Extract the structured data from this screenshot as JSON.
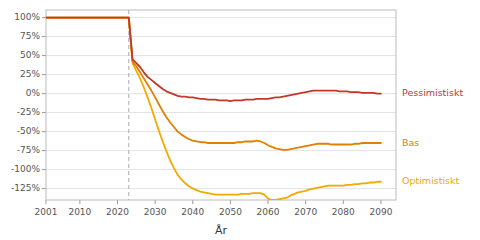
{
  "chart_data": {
    "type": "line",
    "xlabel": "År",
    "x": [
      2001,
      2002,
      2003,
      2004,
      2005,
      2006,
      2007,
      2008,
      2009,
      2010,
      2011,
      2012,
      2013,
      2014,
      2015,
      2016,
      2017,
      2018,
      2019,
      2020,
      2021,
      2022,
      2023,
      2024,
      2025,
      2026,
      2027,
      2028,
      2029,
      2030,
      2031,
      2032,
      2033,
      2034,
      2035,
      2036,
      2037,
      2038,
      2039,
      2040,
      2041,
      2042,
      2043,
      2044,
      2045,
      2046,
      2047,
      2048,
      2049,
      2050,
      2051,
      2052,
      2053,
      2054,
      2055,
      2056,
      2057,
      2058,
      2059,
      2060,
      2061,
      2062,
      2063,
      2064,
      2065,
      2066,
      2067,
      2068,
      2069,
      2070,
      2071,
      2072,
      2073,
      2074,
      2075,
      2076,
      2077,
      2078,
      2079,
      2080,
      2081,
      2082,
      2083,
      2084,
      2085,
      2086,
      2087,
      2088,
      2089,
      2090
    ],
    "series": [
      {
        "name": "Optimistiskt",
        "color": "#f5a800",
        "values": [
          1.0,
          1.0,
          1.0,
          1.0,
          1.0,
          1.0,
          1.0,
          1.0,
          1.0,
          1.0,
          1.0,
          1.0,
          1.0,
          1.0,
          1.0,
          1.0,
          1.0,
          1.0,
          1.0,
          1.0,
          1.0,
          1.0,
          1.0,
          0.4,
          0.3,
          0.2,
          0.08,
          -0.05,
          -0.19,
          -0.34,
          -0.49,
          -0.63,
          -0.76,
          -0.88,
          -0.98,
          -1.07,
          -1.13,
          -1.18,
          -1.22,
          -1.25,
          -1.27,
          -1.29,
          -1.3,
          -1.31,
          -1.32,
          -1.33,
          -1.33,
          -1.33,
          -1.33,
          -1.33,
          -1.33,
          -1.33,
          -1.32,
          -1.32,
          -1.32,
          -1.31,
          -1.31,
          -1.31,
          -1.33,
          -1.38,
          -1.4,
          -1.4,
          -1.39,
          -1.38,
          -1.37,
          -1.34,
          -1.32,
          -1.3,
          -1.29,
          -1.28,
          -1.26,
          -1.25,
          -1.24,
          -1.23,
          -1.22,
          -1.21,
          -1.21,
          -1.21,
          -1.21,
          -1.21,
          -1.2,
          -1.2,
          -1.19,
          -1.19,
          -1.18,
          -1.18,
          -1.17,
          -1.17,
          -1.16,
          -1.16
        ]
      },
      {
        "name": "Bas",
        "color": "#e08000",
        "values": [
          1.0,
          1.0,
          1.0,
          1.0,
          1.0,
          1.0,
          1.0,
          1.0,
          1.0,
          1.0,
          1.0,
          1.0,
          1.0,
          1.0,
          1.0,
          1.0,
          1.0,
          1.0,
          1.0,
          1.0,
          1.0,
          1.0,
          1.0,
          0.42,
          0.36,
          0.28,
          0.2,
          0.12,
          0.04,
          -0.05,
          -0.14,
          -0.23,
          -0.31,
          -0.38,
          -0.44,
          -0.5,
          -0.54,
          -0.57,
          -0.6,
          -0.62,
          -0.63,
          -0.64,
          -0.64,
          -0.65,
          -0.65,
          -0.65,
          -0.65,
          -0.65,
          -0.65,
          -0.65,
          -0.65,
          -0.64,
          -0.64,
          -0.63,
          -0.63,
          -0.63,
          -0.62,
          -0.63,
          -0.65,
          -0.68,
          -0.7,
          -0.72,
          -0.73,
          -0.74,
          -0.74,
          -0.73,
          -0.72,
          -0.71,
          -0.7,
          -0.69,
          -0.68,
          -0.67,
          -0.66,
          -0.66,
          -0.66,
          -0.66,
          -0.67,
          -0.67,
          -0.67,
          -0.67,
          -0.67,
          -0.67,
          -0.66,
          -0.66,
          -0.65,
          -0.65,
          -0.65,
          -0.65,
          -0.65,
          -0.65
        ]
      },
      {
        "name": "Pessimistiskt",
        "color": "#c0392b",
        "values": [
          1.0,
          1.0,
          1.0,
          1.0,
          1.0,
          1.0,
          1.0,
          1.0,
          1.0,
          1.0,
          1.0,
          1.0,
          1.0,
          1.0,
          1.0,
          1.0,
          1.0,
          1.0,
          1.0,
          1.0,
          1.0,
          1.0,
          1.0,
          0.45,
          0.4,
          0.35,
          0.28,
          0.22,
          0.18,
          0.14,
          0.1,
          0.06,
          0.03,
          0.01,
          -0.01,
          -0.03,
          -0.04,
          -0.04,
          -0.05,
          -0.05,
          -0.06,
          -0.07,
          -0.07,
          -0.08,
          -0.08,
          -0.08,
          -0.09,
          -0.09,
          -0.09,
          -0.1,
          -0.09,
          -0.09,
          -0.09,
          -0.08,
          -0.08,
          -0.08,
          -0.07,
          -0.07,
          -0.07,
          -0.07,
          -0.06,
          -0.05,
          -0.05,
          -0.04,
          -0.03,
          -0.02,
          -0.01,
          0.0,
          0.01,
          0.02,
          0.03,
          0.04,
          0.04,
          0.04,
          0.04,
          0.04,
          0.04,
          0.04,
          0.03,
          0.03,
          0.03,
          0.02,
          0.02,
          0.02,
          0.01,
          0.01,
          0.01,
          0.01,
          0.0,
          0.0
        ]
      }
    ],
    "xlim": [
      2001,
      2094
    ],
    "ylim": [
      -1.4,
      1.1
    ],
    "xticks": [
      2001,
      2010,
      2020,
      2030,
      2040,
      2050,
      2060,
      2070,
      2080,
      2090
    ],
    "yticks": [
      {
        "value": 1.0,
        "label": "100%"
      },
      {
        "value": 0.75,
        "label": "75%"
      },
      {
        "value": 0.5,
        "label": "50%"
      },
      {
        "value": 0.25,
        "label": "25%"
      },
      {
        "value": 0.0,
        "label": "0%"
      },
      {
        "value": -0.25,
        "label": "-25%"
      },
      {
        "value": -0.5,
        "label": "-50%"
      },
      {
        "value": -0.75,
        "label": "-75%"
      },
      {
        "value": -1.0,
        "label": "-100%"
      },
      {
        "value": -1.25,
        "label": "-125%"
      }
    ],
    "vline": 2023,
    "grid": "y"
  }
}
